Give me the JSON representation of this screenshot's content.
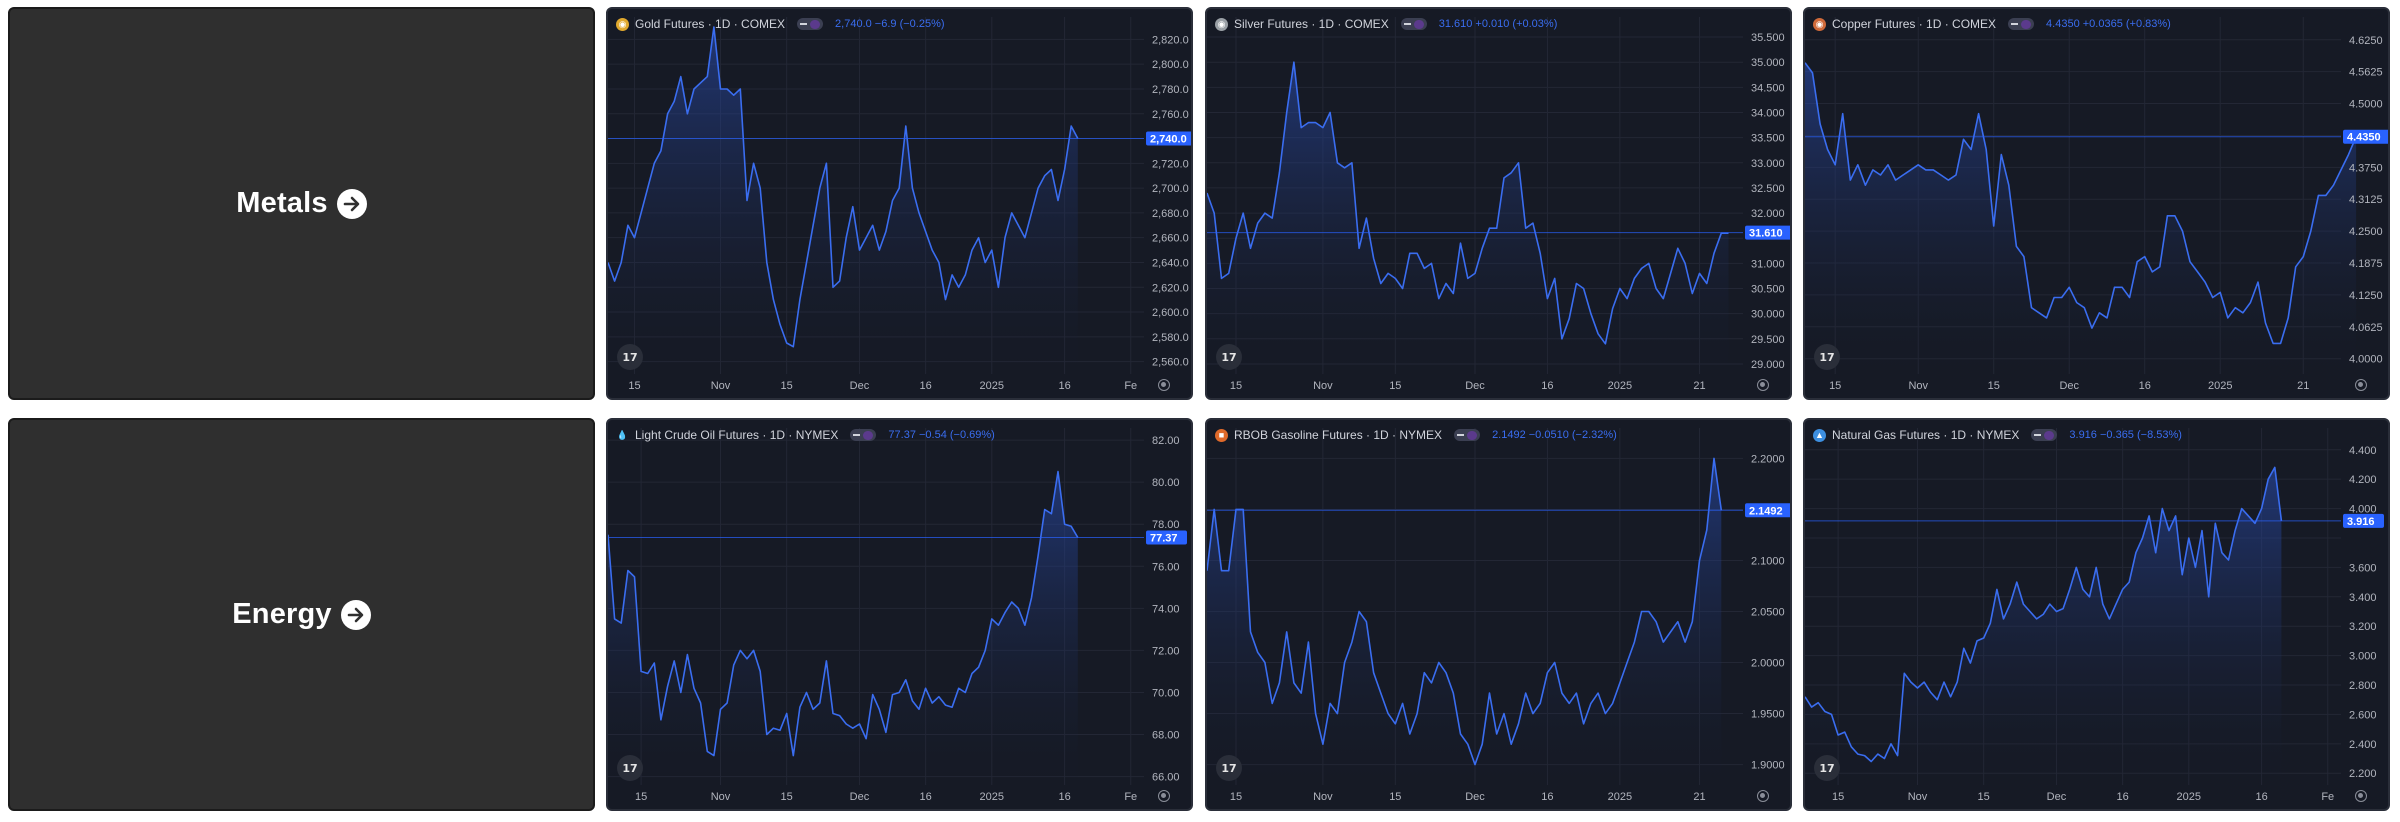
{
  "categories": [
    {
      "label": "Metals",
      "icon": "arrow-right-circle-icon"
    },
    {
      "label": "Energy",
      "icon": "arrow-right-circle-icon"
    }
  ],
  "colors": {
    "background": "#ffffff",
    "category_card": "#2f2f2f",
    "widget_bg": "#161a25",
    "line": "#3a6df0",
    "price_tag": "#2962ff",
    "axis_text": "#b2b5be"
  },
  "chart_data": [
    {
      "type": "area",
      "title": "Gold Futures · 1D · COMEX",
      "quote": "2,740.0 −6.9 (−0.25%)",
      "symbol_icon": "gold-coin-icon",
      "last_label": "2,740.0",
      "last": 2740.0,
      "ylim": [
        2550,
        2830
      ],
      "y_ticks": [
        2820,
        2800,
        2780,
        2760,
        2740,
        2720,
        2700,
        2680,
        2660,
        2640,
        2620,
        2600,
        2580,
        2560
      ],
      "y_tick_labels": [
        "2,820.0",
        "2,800.0",
        "2,780.0",
        "2,760.0",
        "",
        "2,720.0",
        "2,700.0",
        "2,680.0",
        "2,660.0",
        "2,640.0",
        "2,620.0",
        "2,600.0",
        "2,580.0",
        "2,560.0"
      ],
      "x_ticks": [
        {
          "label": "15",
          "i": 4
        },
        {
          "label": "Nov",
          "i": 17
        },
        {
          "label": "15",
          "i": 27
        },
        {
          "label": "Dec",
          "i": 38
        },
        {
          "label": "16",
          "i": 48
        },
        {
          "label": "2025",
          "i": 58
        },
        {
          "label": "16",
          "i": 69
        },
        {
          "label": "Fe",
          "i": 79
        }
      ],
      "x_count": 82,
      "values": [
        2640,
        2625,
        2640,
        2670,
        2660,
        2680,
        2700,
        2720,
        2730,
        2760,
        2770,
        2790,
        2760,
        2780,
        2785,
        2790,
        2830,
        2780,
        2780,
        2775,
        2780,
        2690,
        2720,
        2700,
        2640,
        2610,
        2590,
        2575,
        2572,
        2610,
        2640,
        2670,
        2700,
        2720,
        2620,
        2625,
        2660,
        2685,
        2650,
        2660,
        2670,
        2650,
        2665,
        2690,
        2700,
        2750,
        2700,
        2680,
        2665,
        2650,
        2640,
        2610,
        2630,
        2620,
        2630,
        2650,
        2660,
        2640,
        2650,
        2620,
        2660,
        2680,
        2670,
        2660,
        2680,
        2700,
        2710,
        2715,
        2690,
        2715,
        2750,
        2740
      ]
    },
    {
      "type": "area",
      "title": "Silver Futures · 1D · COMEX",
      "quote": "31.610 +0.010 (+0.03%)",
      "symbol_icon": "silver-coin-icon",
      "last_label": "31.610",
      "last": 31.61,
      "ylim": [
        28.8,
        35.7
      ],
      "y_ticks": [
        35.5,
        35.0,
        34.5,
        34.0,
        33.5,
        33.0,
        32.5,
        32.0,
        31.5,
        31.0,
        30.5,
        30.0,
        29.5,
        29.0
      ],
      "y_tick_labels": [
        "35.500",
        "35.000",
        "34.500",
        "34.000",
        "33.500",
        "33.000",
        "32.500",
        "32.000",
        "",
        "31.000",
        "30.500",
        "30.000",
        "29.500",
        "29.000"
      ],
      "x_ticks": [
        {
          "label": "15",
          "i": 4
        },
        {
          "label": "Nov",
          "i": 16
        },
        {
          "label": "15",
          "i": 26
        },
        {
          "label": "Dec",
          "i": 37
        },
        {
          "label": "16",
          "i": 47
        },
        {
          "label": "2025",
          "i": 57
        },
        {
          "label": "21",
          "i": 68
        }
      ],
      "x_count": 75,
      "values": [
        32.4,
        32.0,
        30.7,
        30.8,
        31.5,
        32.0,
        31.3,
        31.8,
        32.0,
        31.9,
        32.8,
        34.0,
        35.0,
        33.7,
        33.8,
        33.8,
        33.7,
        34.0,
        33.0,
        32.9,
        33.0,
        31.3,
        31.9,
        31.1,
        30.6,
        30.8,
        30.7,
        30.5,
        31.2,
        31.2,
        30.9,
        31.0,
        30.3,
        30.6,
        30.4,
        31.4,
        30.7,
        30.8,
        31.3,
        31.7,
        31.7,
        32.7,
        32.8,
        33.0,
        31.7,
        31.8,
        31.2,
        30.3,
        30.7,
        29.5,
        29.9,
        30.6,
        30.5,
        30.0,
        29.6,
        29.4,
        30.1,
        30.5,
        30.3,
        30.7,
        30.9,
        31.0,
        30.5,
        30.3,
        30.8,
        31.3,
        31.0,
        30.4,
        30.8,
        30.6,
        31.2,
        31.6,
        31.6
      ]
    },
    {
      "type": "area",
      "title": "Copper Futures · 1D · COMEX",
      "quote": "4.4350 +0.0365 (+0.83%)",
      "symbol_icon": "copper-coin-icon",
      "last_label": "4.4350",
      "last": 4.435,
      "ylim": [
        3.97,
        4.65
      ],
      "y_ticks": [
        4.625,
        4.5625,
        4.5,
        4.4375,
        4.375,
        4.3125,
        4.25,
        4.1875,
        4.125,
        4.0625,
        4.0
      ],
      "y_tick_labels": [
        "4.6250",
        "4.5625",
        "4.5000",
        "",
        "4.3750",
        "4.3125",
        "4.2500",
        "4.1875",
        "4.1250",
        "4.0625",
        "4.0000"
      ],
      "x_ticks": [
        {
          "label": "15",
          "i": 4
        },
        {
          "label": "Nov",
          "i": 15
        },
        {
          "label": "15",
          "i": 25
        },
        {
          "label": "Dec",
          "i": 35
        },
        {
          "label": "16",
          "i": 45
        },
        {
          "label": "2025",
          "i": 55
        },
        {
          "label": "21",
          "i": 66
        }
      ],
      "x_count": 72,
      "values": [
        4.58,
        4.56,
        4.46,
        4.41,
        4.38,
        4.48,
        4.35,
        4.38,
        4.34,
        4.37,
        4.36,
        4.38,
        4.35,
        4.36,
        4.37,
        4.38,
        4.37,
        4.37,
        4.36,
        4.35,
        4.36,
        4.43,
        4.41,
        4.48,
        4.41,
        4.26,
        4.4,
        4.34,
        4.22,
        4.2,
        4.1,
        4.09,
        4.08,
        4.12,
        4.12,
        4.14,
        4.11,
        4.1,
        4.06,
        4.09,
        4.08,
        4.14,
        4.14,
        4.12,
        4.19,
        4.2,
        4.17,
        4.18,
        4.28,
        4.28,
        4.25,
        4.19,
        4.17,
        4.15,
        4.12,
        4.13,
        4.08,
        4.1,
        4.09,
        4.11,
        4.15,
        4.07,
        4.03,
        4.03,
        4.08,
        4.18,
        4.2,
        4.25,
        4.32,
        4.32,
        4.34,
        4.37,
        4.4,
        4.435
      ]
    },
    {
      "type": "area",
      "title": "Light Crude Oil Futures · 1D · NYMEX",
      "quote": "77.37 −0.54 (−0.69%)",
      "symbol_icon": "oil-drop-icon",
      "last_label": "77.37",
      "last": 77.37,
      "ylim": [
        65.6,
        82.1
      ],
      "y_ticks": [
        82,
        80,
        78,
        76,
        74,
        72,
        70,
        68,
        66
      ],
      "y_tick_labels": [
        "82.00",
        "80.00",
        "78.00",
        "76.00",
        "74.00",
        "72.00",
        "70.00",
        "68.00",
        "66.00"
      ],
      "x_ticks": [
        {
          "label": "15",
          "i": 5
        },
        {
          "label": "Nov",
          "i": 17
        },
        {
          "label": "15",
          "i": 27
        },
        {
          "label": "Dec",
          "i": 38
        },
        {
          "label": "16",
          "i": 48
        },
        {
          "label": "2025",
          "i": 58
        },
        {
          "label": "16",
          "i": 69
        },
        {
          "label": "Fe",
          "i": 79
        }
      ],
      "x_count": 82,
      "values": [
        77.5,
        73.5,
        73.3,
        75.8,
        75.5,
        71.0,
        70.9,
        71.4,
        68.7,
        70.3,
        71.5,
        70.0,
        71.8,
        70.2,
        69.5,
        67.2,
        67.0,
        69.2,
        69.5,
        71.3,
        72.0,
        71.6,
        72.0,
        71.0,
        68.0,
        68.3,
        68.2,
        69.0,
        67.0,
        69.3,
        70.0,
        69.2,
        69.5,
        71.5,
        69.0,
        68.9,
        68.5,
        68.3,
        68.5,
        67.8,
        69.9,
        69.2,
        68.1,
        69.9,
        70.0,
        70.6,
        69.6,
        69.2,
        70.2,
        69.5,
        69.8,
        69.4,
        69.3,
        70.2,
        70.0,
        70.9,
        71.2,
        72.0,
        73.5,
        73.2,
        73.8,
        74.3,
        74.0,
        73.2,
        74.5,
        76.5,
        78.7,
        78.5,
        80.5,
        78.0,
        77.9,
        77.37
      ]
    },
    {
      "type": "area",
      "title": "RBOB Gasoline Futures · 1D · NYMEX",
      "quote": "2.1492 −0.0510 (−2.32%)",
      "symbol_icon": "gasoline-icon",
      "last_label": "2.1492",
      "last": 2.1492,
      "ylim": [
        1.88,
        2.22
      ],
      "y_ticks": [
        2.2,
        2.15,
        2.1,
        2.05,
        2.0,
        1.95,
        1.9
      ],
      "y_tick_labels": [
        "2.2000",
        "",
        "2.1000",
        "2.0500",
        "2.0000",
        "1.9500",
        "1.9000"
      ],
      "x_ticks": [
        {
          "label": "15",
          "i": 4
        },
        {
          "label": "Nov",
          "i": 16
        },
        {
          "label": "15",
          "i": 26
        },
        {
          "label": "Dec",
          "i": 37
        },
        {
          "label": "16",
          "i": 47
        },
        {
          "label": "2025",
          "i": 57
        },
        {
          "label": "21",
          "i": 68
        }
      ],
      "x_count": 75,
      "values": [
        2.09,
        2.15,
        2.09,
        2.09,
        2.15,
        2.15,
        2.03,
        2.01,
        2.0,
        1.96,
        1.98,
        2.03,
        1.98,
        1.97,
        2.02,
        1.95,
        1.92,
        1.96,
        1.95,
        2.0,
        2.02,
        2.05,
        2.04,
        1.99,
        1.97,
        1.95,
        1.94,
        1.96,
        1.93,
        1.95,
        1.99,
        1.98,
        2.0,
        1.99,
        1.97,
        1.93,
        1.92,
        1.9,
        1.92,
        1.97,
        1.93,
        1.95,
        1.92,
        1.94,
        1.97,
        1.95,
        1.96,
        1.99,
        2.0,
        1.97,
        1.96,
        1.97,
        1.94,
        1.96,
        1.97,
        1.95,
        1.96,
        1.98,
        2.0,
        2.02,
        2.05,
        2.05,
        2.04,
        2.02,
        2.03,
        2.04,
        2.02,
        2.04,
        2.1,
        2.13,
        2.2,
        2.1492
      ]
    },
    {
      "type": "area",
      "title": "Natural Gas Futures · 1D · NYMEX",
      "quote": "3.916 −0.365 (−8.53%)",
      "symbol_icon": "gas-flame-icon",
      "last_label": "3.916",
      "last": 3.916,
      "ylim": [
        2.12,
        4.48
      ],
      "y_ticks": [
        4.4,
        4.2,
        4.0,
        3.8,
        3.6,
        3.4,
        3.2,
        3.0,
        2.8,
        2.6,
        2.4,
        2.2
      ],
      "y_tick_labels": [
        "4.400",
        "4.200",
        "4.000",
        "",
        "3.600",
        "3.400",
        "3.200",
        "3.000",
        "2.800",
        "2.600",
        "2.400",
        "2.200"
      ],
      "x_ticks": [
        {
          "label": "15",
          "i": 5
        },
        {
          "label": "Nov",
          "i": 17
        },
        {
          "label": "15",
          "i": 27
        },
        {
          "label": "Dec",
          "i": 38
        },
        {
          "label": "16",
          "i": 48
        },
        {
          "label": "2025",
          "i": 58
        },
        {
          "label": "16",
          "i": 69
        },
        {
          "label": "Fe",
          "i": 79
        }
      ],
      "x_count": 82,
      "values": [
        2.72,
        2.65,
        2.68,
        2.62,
        2.6,
        2.46,
        2.48,
        2.38,
        2.33,
        2.32,
        2.28,
        2.33,
        2.3,
        2.4,
        2.32,
        2.88,
        2.82,
        2.78,
        2.82,
        2.75,
        2.7,
        2.82,
        2.72,
        2.82,
        3.05,
        2.95,
        3.1,
        3.12,
        3.22,
        3.45,
        3.25,
        3.35,
        3.5,
        3.35,
        3.3,
        3.25,
        3.28,
        3.35,
        3.3,
        3.32,
        3.45,
        3.6,
        3.45,
        3.4,
        3.6,
        3.35,
        3.25,
        3.35,
        3.45,
        3.5,
        3.7,
        3.8,
        3.95,
        3.7,
        4.0,
        3.85,
        3.95,
        3.55,
        3.8,
        3.6,
        3.85,
        3.4,
        3.9,
        3.7,
        3.65,
        3.85,
        4.0,
        3.95,
        3.9,
        4.0,
        4.2,
        4.28,
        3.916
      ]
    }
  ]
}
